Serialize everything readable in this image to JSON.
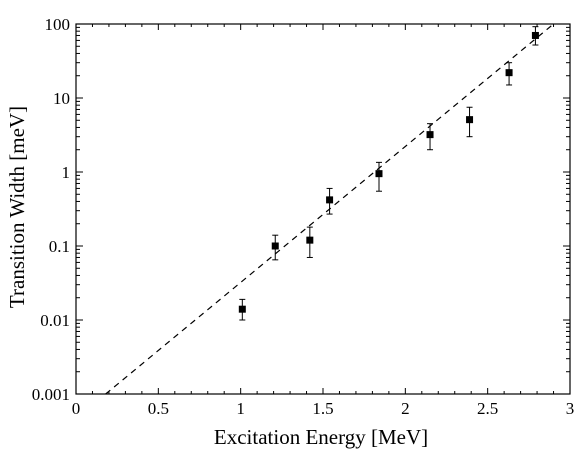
{
  "chart_data": {
    "type": "scatter",
    "title": "",
    "xlabel": "Excitation Energy [MeV]",
    "ylabel": "Transition Width [meV]",
    "xlim": [
      0,
      3
    ],
    "ylim": [
      0.001,
      100
    ],
    "yscale": "log",
    "x_ticks": [
      0,
      0.5,
      1,
      1.5,
      2,
      2.5,
      3
    ],
    "x_tick_labels": [
      "0",
      "0.5",
      "1",
      "1.5",
      "2",
      "2.5",
      "3"
    ],
    "y_ticks": [
      0.001,
      0.01,
      0.1,
      1,
      10,
      100
    ],
    "y_tick_labels": [
      "0.001",
      "0.01",
      "0.1",
      "1",
      "10",
      "100"
    ],
    "grid": false,
    "series": [
      {
        "marker": "square",
        "color": "#000000",
        "points": [
          {
            "x": 1.01,
            "y": 0.014,
            "y_low": 0.01,
            "y_high": 0.019
          },
          {
            "x": 1.21,
            "y": 0.1,
            "y_low": 0.065,
            "y_high": 0.14
          },
          {
            "x": 1.42,
            "y": 0.12,
            "y_low": 0.07,
            "y_high": 0.18
          },
          {
            "x": 1.54,
            "y": 0.42,
            "y_low": 0.27,
            "y_high": 0.6
          },
          {
            "x": 1.84,
            "y": 0.95,
            "y_low": 0.55,
            "y_high": 1.35
          },
          {
            "x": 2.15,
            "y": 3.2,
            "y_low": 2.0,
            "y_high": 4.5
          },
          {
            "x": 2.39,
            "y": 5.1,
            "y_low": 3.0,
            "y_high": 7.5
          },
          {
            "x": 2.63,
            "y": 22,
            "y_low": 15,
            "y_high": 30
          },
          {
            "x": 2.79,
            "y": 70,
            "y_low": 52,
            "y_high": 92
          }
        ]
      }
    ],
    "fit_line": {
      "style": "dashed",
      "color": "#000000",
      "points": [
        {
          "x": 0.18,
          "y": 0.001
        },
        {
          "x": 2.9,
          "y": 100
        }
      ]
    }
  }
}
